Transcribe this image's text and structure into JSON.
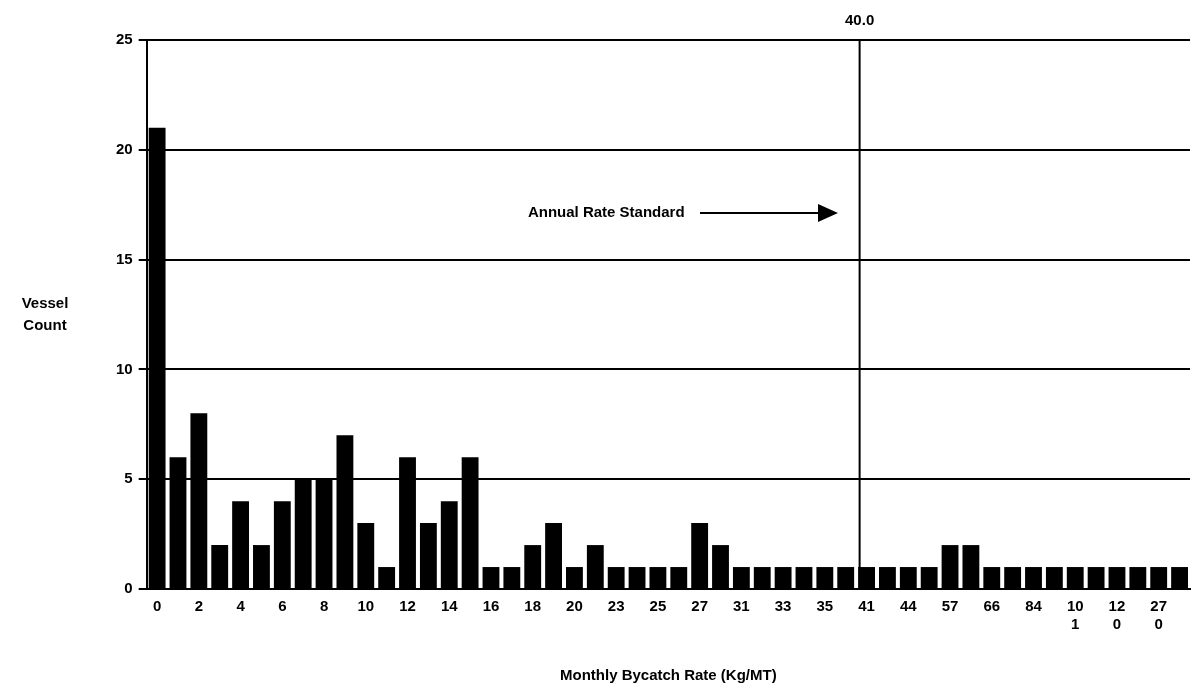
{
  "chart_data": {
    "type": "bar",
    "xlabel": "Monthly Bycatch Rate (Kg/MT)",
    "ylabel": "Vessel Count",
    "categories": [
      "0",
      null,
      "2",
      null,
      "4",
      null,
      "6",
      null,
      "8",
      null,
      "10",
      null,
      "12",
      null,
      "14",
      null,
      "16",
      null,
      "18",
      null,
      "20",
      null,
      "23",
      null,
      "25",
      null,
      "27",
      null,
      "31",
      null,
      "33",
      null,
      "35",
      null,
      "41",
      null,
      "44",
      null,
      "57",
      null,
      "66",
      null,
      "84",
      null,
      "101",
      null,
      "120",
      null,
      "270",
      null
    ],
    "values": [
      21,
      6,
      8,
      2,
      4,
      2,
      4,
      5,
      5,
      7,
      3,
      1,
      6,
      3,
      4,
      6,
      1,
      1,
      2,
      3,
      1,
      2,
      1,
      1,
      1,
      1,
      3,
      2,
      1,
      1,
      1,
      1,
      1,
      1,
      1,
      1,
      1,
      1,
      2,
      2,
      1,
      1,
      1,
      1,
      1,
      1,
      1,
      1,
      1,
      1
    ],
    "color": "#000000",
    "ylim": [
      0,
      25
    ],
    "yticks": [
      0,
      5,
      10,
      15,
      20,
      25
    ],
    "grid": "y",
    "legend": false,
    "annotations": [
      "40.0",
      "Annual Rate Standard"
    ]
  }
}
